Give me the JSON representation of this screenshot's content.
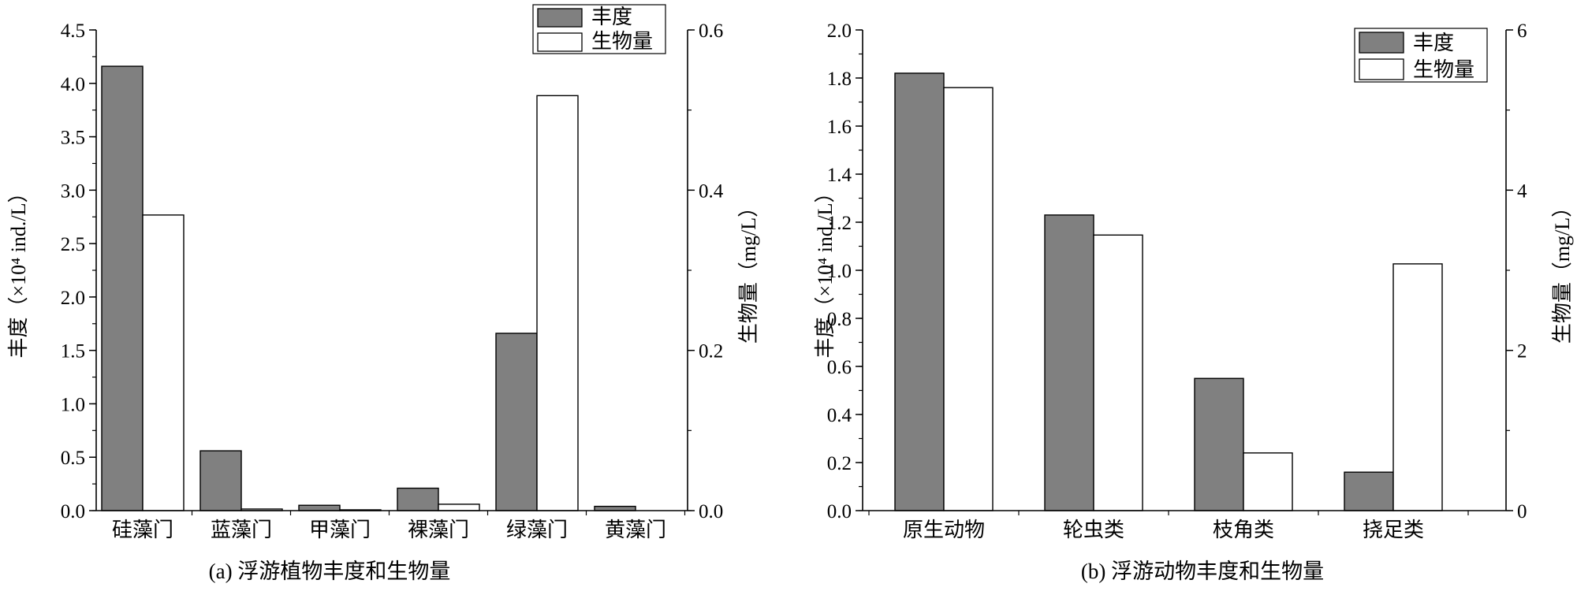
{
  "chart_data": [
    {
      "type": "bar",
      "caption": "(a) 浮游植物丰度和生物量",
      "categories": [
        "硅藻门",
        "蓝藻门",
        "甲藻门",
        "裸藻门",
        "绿藻门",
        "黄藻门"
      ],
      "ylabel_left": "丰度（×10⁴ ind./L）",
      "ylabel_right": "生物量（mg/L）",
      "ylim_left": [
        0,
        4.5
      ],
      "ylim_right": [
        0,
        0.6
      ],
      "yticks_left": [
        "0.0",
        "0.5",
        "1.0",
        "1.5",
        "2.0",
        "2.5",
        "3.0",
        "3.5",
        "4.0",
        "4.5"
      ],
      "yticks_right": [
        "0.0",
        "0.2",
        "0.4",
        "0.6"
      ],
      "legend_position": "top-right",
      "grid": false,
      "series": [
        {
          "name": "丰度",
          "axis": "left",
          "color": "#808080",
          "values": [
            4.16,
            0.56,
            0.05,
            0.21,
            1.66,
            0.04
          ]
        },
        {
          "name": "生物量",
          "axis": "right",
          "color": "#ffffff",
          "values": [
            0.369,
            0.002,
            0.001,
            0.008,
            0.518,
            0.0
          ]
        }
      ]
    },
    {
      "type": "bar",
      "caption": "(b) 浮游动物丰度和生物量",
      "categories": [
        "原生动物",
        "轮虫类",
        "枝角类",
        "挠足类"
      ],
      "ylabel_left": "丰度（×10⁴ ind./L）",
      "ylabel_right": "生物量（mg/L）",
      "ylim_left": [
        0,
        2.0
      ],
      "ylim_right": [
        0,
        6
      ],
      "yticks_left": [
        "0.0",
        "0.2",
        "0.4",
        "0.6",
        "0.8",
        "1.0",
        "1.2",
        "1.4",
        "1.6",
        "1.8",
        "2.0"
      ],
      "yticks_right": [
        "0",
        "2",
        "4",
        "6"
      ],
      "legend_position": "top-right",
      "grid": false,
      "series": [
        {
          "name": "丰度",
          "axis": "left",
          "color": "#808080",
          "values": [
            1.82,
            1.23,
            0.55,
            0.16
          ]
        },
        {
          "name": "生物量",
          "axis": "right",
          "color": "#ffffff",
          "values": [
            5.28,
            3.44,
            0.72,
            3.08
          ]
        }
      ]
    }
  ]
}
